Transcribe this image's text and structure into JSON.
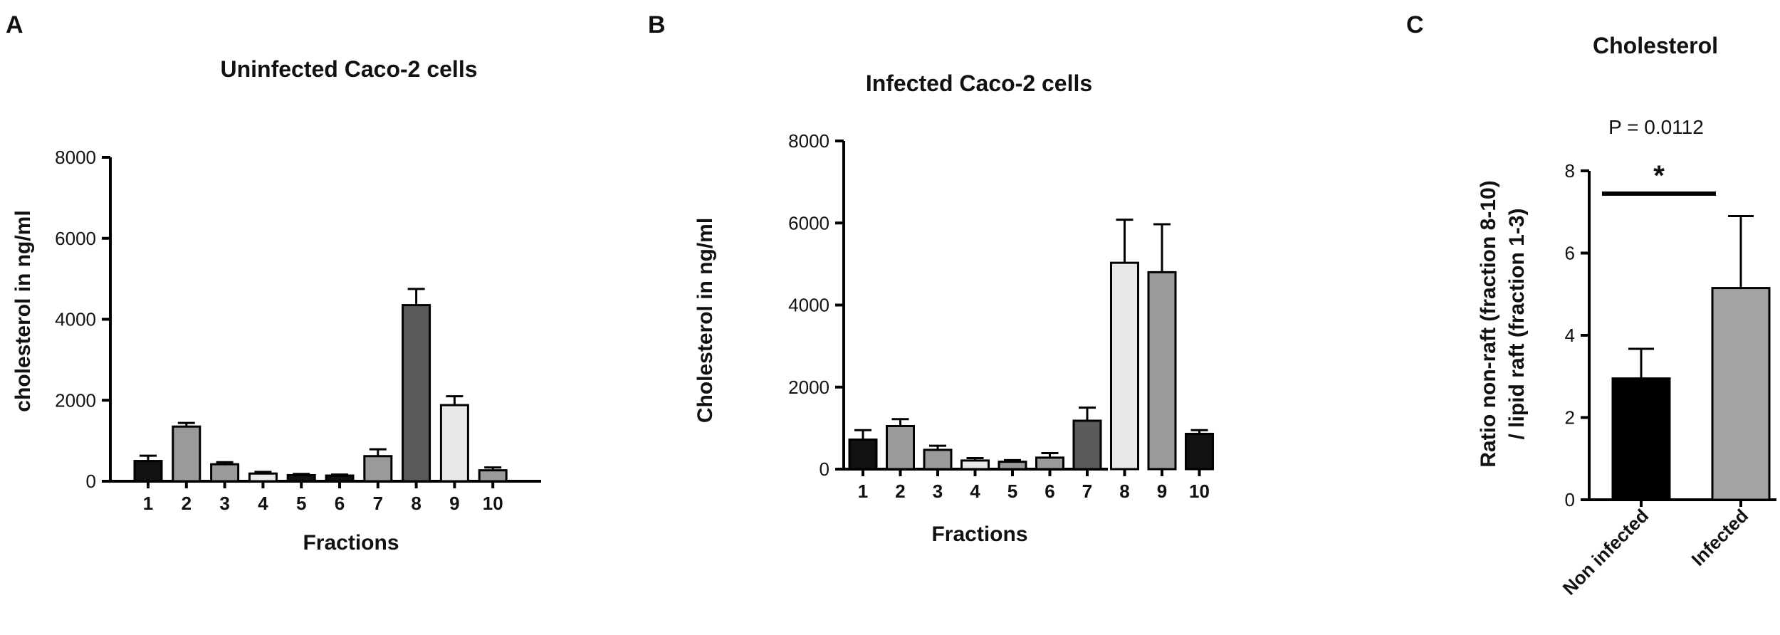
{
  "chart_data": [
    {
      "panel": "A",
      "type": "bar",
      "title": "Uninfected Caco-2 cells",
      "xlabel": "Fractions",
      "ylabel": "cholesterol in ng/ml",
      "ylim": [
        0,
        8000
      ],
      "yticks": [
        0,
        2000,
        4000,
        6000,
        8000
      ],
      "categories": [
        "1",
        "2",
        "3",
        "4",
        "5",
        "6",
        "7",
        "8",
        "9",
        "10"
      ],
      "values": [
        500,
        1350,
        420,
        190,
        150,
        140,
        620,
        4350,
        1880,
        270
      ],
      "errors": [
        130,
        90,
        50,
        40,
        30,
        25,
        170,
        400,
        220,
        70
      ],
      "colors": [
        "#111111",
        "#9a9a9a",
        "#9a9a9a",
        "#e8e8e8",
        "#111111",
        "#111111",
        "#9a9a9a",
        "#5a5a5a",
        "#e8e8e8",
        "#9a9a9a"
      ],
      "grid": false
    },
    {
      "panel": "B",
      "type": "bar",
      "title": "Infected Caco-2 cells",
      "xlabel": "Fractions",
      "ylabel": "Cholesterol  in ng/ml",
      "ylim": [
        0,
        8000
      ],
      "yticks": [
        0,
        2000,
        4000,
        6000,
        8000
      ],
      "categories": [
        "1",
        "2",
        "3",
        "4",
        "5",
        "6",
        "7",
        "8",
        "9",
        "10"
      ],
      "values": [
        720,
        1050,
        470,
        210,
        180,
        280,
        1180,
        5030,
        4800,
        860
      ],
      "errors": [
        230,
        170,
        100,
        60,
        40,
        110,
        320,
        1050,
        1170,
        90
      ],
      "colors": [
        "#111111",
        "#9a9a9a",
        "#9a9a9a",
        "#e8e8e8",
        "#9a9a9a",
        "#9a9a9a",
        "#5a5a5a",
        "#e8e8e8",
        "#9a9a9a",
        "#111111"
      ],
      "grid": false
    },
    {
      "panel": "C",
      "type": "bar",
      "title": "Cholesterol",
      "xlabel": "",
      "ylabel_line1": "Ratio non-raft (fraction 8-10)",
      "ylabel_line2": "/ lipid raft (fraction 1-3)",
      "ylim": [
        0,
        8
      ],
      "yticks": [
        0,
        2,
        4,
        6,
        8
      ],
      "categories": [
        "Non infected",
        "Infected"
      ],
      "values": [
        2.95,
        5.15
      ],
      "errors": [
        0.72,
        1.75
      ],
      "colors": [
        "#000000",
        "#a3a3a3"
      ],
      "annotation_p": "P = 0.0112",
      "significance": "*",
      "grid": false
    }
  ]
}
